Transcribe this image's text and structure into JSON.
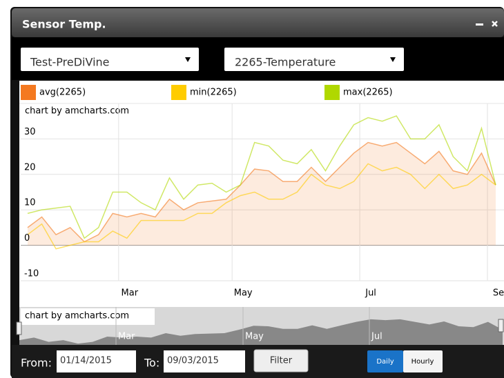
{
  "window": {
    "title": "Sensor Temp."
  },
  "selects": [
    "Test-PreDiVine",
    "2265-Temperature"
  ],
  "chart_data": {
    "type": "line",
    "credit": "chart by amcharts.com",
    "categories": [
      null,
      null,
      null,
      null,
      null,
      null,
      null,
      "Mar",
      null,
      null,
      null,
      null,
      null,
      null,
      null,
      "May",
      null,
      null,
      null,
      null,
      null,
      null,
      null,
      null,
      "Jul",
      null,
      null,
      null,
      null,
      null,
      null,
      null,
      null,
      "Se"
    ],
    "series": [
      {
        "name": "avg(2265)",
        "color": "#f47920",
        "values": [
          5,
          8,
          3,
          5,
          1,
          3,
          9,
          8,
          9,
          8,
          13,
          10,
          12,
          12.5,
          13,
          17,
          21.5,
          21,
          18,
          18,
          22,
          18,
          22,
          26,
          29,
          28,
          29,
          26,
          23,
          26.5,
          21,
          20,
          26,
          17
        ]
      },
      {
        "name": "min(2265)",
        "color": "#ffcc00",
        "values": [
          3,
          6,
          -1,
          0,
          1,
          1,
          4,
          2,
          7,
          7,
          7,
          7,
          9,
          9,
          12,
          14,
          15,
          13,
          13,
          15,
          20,
          17,
          16,
          18,
          23,
          21,
          22,
          20,
          16,
          20,
          16,
          17,
          20,
          17
        ]
      },
      {
        "name": "max(2265)",
        "color": "#b0d800",
        "values": [
          9,
          10,
          10.5,
          11,
          2,
          5,
          15,
          15,
          12,
          10,
          19,
          13,
          17,
          17.5,
          15,
          17,
          29,
          28,
          24,
          23,
          27,
          21,
          28,
          34,
          36,
          35,
          36.5,
          30,
          30,
          34,
          25,
          21,
          33,
          17
        ]
      }
    ],
    "ylim": [
      -10,
      40
    ],
    "yticks": [
      -10,
      0,
      10,
      20,
      30
    ],
    "grid": true
  },
  "navigator": {
    "credit": "chart by amcharts.com",
    "labels": [
      "Mar",
      "May",
      "Jul"
    ]
  },
  "footer": {
    "from_label": "From:",
    "from_value": "01/14/2015",
    "to_label": "To:",
    "to_value": "09/03/2015",
    "filter": "Filter",
    "daily": "Daily",
    "hourly": "Hourly"
  }
}
